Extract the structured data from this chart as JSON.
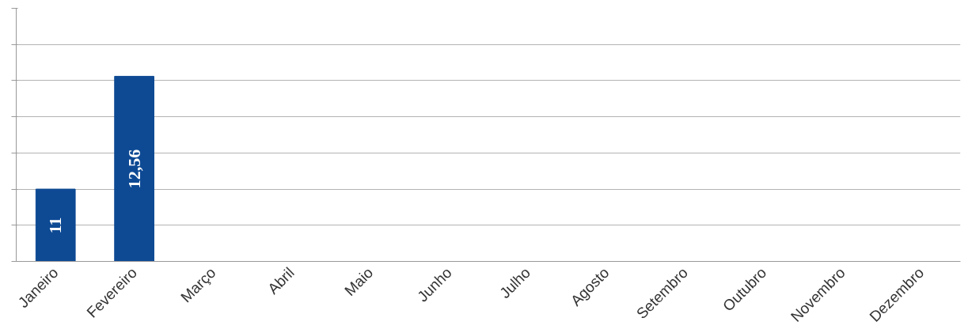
{
  "chart_data": {
    "type": "bar",
    "categories": [
      "Janeiro",
      "Fevereiro",
      "Março",
      "Abril",
      "Maio",
      "Junho",
      "Julho",
      "Agosto",
      "Setembro",
      "Outubro",
      "Novembro",
      "Dezembro"
    ],
    "values": [
      11,
      12.56,
      null,
      null,
      null,
      null,
      null,
      null,
      null,
      null,
      null,
      null
    ],
    "value_labels": [
      "11",
      "12,56",
      null,
      null,
      null,
      null,
      null,
      null,
      null,
      null,
      null,
      null
    ],
    "color": "#0e4a94",
    "ylim": [
      10,
      13.5
    ],
    "yticks": [
      {
        "value": 10,
        "label": null
      },
      {
        "value": 10.5,
        "label": null
      },
      {
        "value": 11,
        "label": null
      },
      {
        "value": 11.5,
        "label": null
      },
      {
        "value": 12,
        "label": null
      },
      {
        "value": 12.5,
        "label": null
      },
      {
        "value": 13,
        "label": null
      },
      {
        "value": 13.5,
        "label": null
      }
    ],
    "grid": "y",
    "tick_labels": "x"
  }
}
